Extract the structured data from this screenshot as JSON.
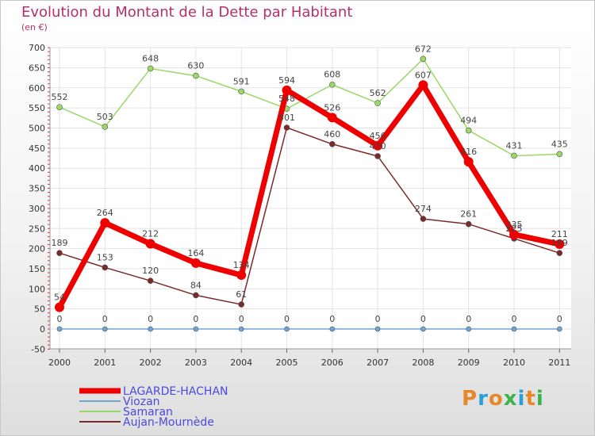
{
  "title": "Evolution du Montant de la Dette par Habitant",
  "unit": "(en €)",
  "brand": "Proxiti",
  "chart_data": {
    "type": "line",
    "x": [
      "2000",
      "2001",
      "2002",
      "2003",
      "2004",
      "2005",
      "2006",
      "2007",
      "2008",
      "2009",
      "2010",
      "2011"
    ],
    "ylim": [
      -50,
      700
    ],
    "yticks": [
      -50,
      0,
      50,
      100,
      150,
      200,
      250,
      300,
      350,
      400,
      450,
      500,
      550,
      600,
      650,
      700
    ],
    "grid": true,
    "legend": "bottom-left",
    "series": [
      {
        "name": "LAGARDE-HACHAN",
        "color": "#ee0000",
        "width": 7,
        "marker": 6,
        "values": [
          54,
          264,
          212,
          164,
          134,
          594,
          526,
          456,
          607,
          416,
          235,
          211
        ]
      },
      {
        "name": "Viozan",
        "color": "#6fa6d6",
        "width": 1.5,
        "marker": 3,
        "values": [
          0,
          0,
          0,
          0,
          0,
          0,
          0,
          0,
          0,
          0,
          0,
          0
        ]
      },
      {
        "name": "Samaran",
        "color": "#99d966",
        "width": 1.5,
        "marker": 3.5,
        "values": [
          552,
          503,
          648,
          630,
          591,
          548,
          608,
          562,
          672,
          494,
          431,
          435
        ]
      },
      {
        "name": "Aujan-Mournède",
        "color": "#7a2a2a",
        "width": 1.5,
        "marker": 3.5,
        "values": [
          189,
          153,
          120,
          84,
          61,
          501,
          460,
          430,
          274,
          261,
          225,
          189
        ]
      }
    ]
  }
}
